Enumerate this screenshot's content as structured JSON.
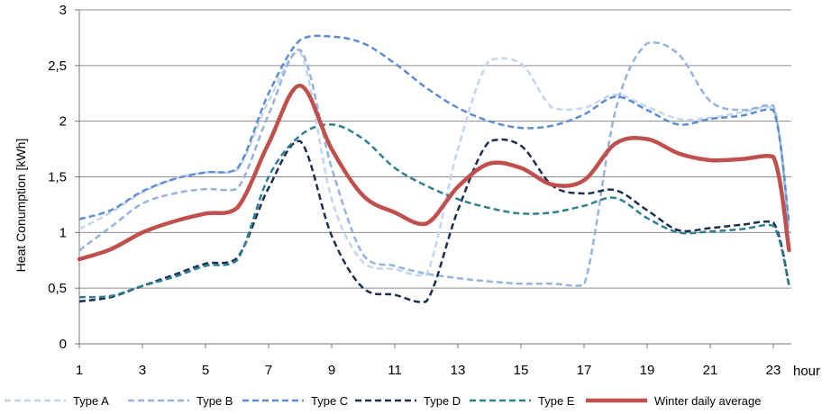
{
  "chart_data": {
    "type": "line",
    "xlabel": "hour",
    "ylabel": "Heat Conumption  [kWh]",
    "ylim": [
      0,
      3
    ],
    "xlim": [
      1,
      23.5
    ],
    "yticks": [
      0,
      0.5,
      1,
      1.5,
      2,
      2.5,
      3
    ],
    "ytick_labels": [
      "0",
      "0,5",
      "1",
      "1,5",
      "2",
      "2,5",
      "3"
    ],
    "xticks": [
      1,
      3,
      5,
      7,
      9,
      11,
      13,
      15,
      17,
      19,
      21,
      23
    ],
    "xtick_labels": [
      "1",
      "3",
      "5",
      "7",
      "9",
      "11",
      "13",
      "15",
      "17",
      "19",
      "21",
      "23"
    ],
    "grid": "horizontal",
    "legend_position": "bottom",
    "series": [
      {
        "name": "Type A",
        "color": "#c3d6ee",
        "dashed": true,
        "x": [
          1,
          2,
          3,
          4,
          5,
          6,
          7,
          8,
          9,
          10,
          11,
          12,
          13,
          14,
          15,
          16,
          17,
          18,
          19,
          20,
          21,
          22,
          23,
          23.5
        ],
        "y": [
          1.03,
          1.18,
          1.36,
          1.48,
          1.54,
          1.56,
          2.18,
          2.62,
          1.3,
          0.73,
          0.67,
          0.62,
          1.75,
          2.55,
          2.52,
          2.12,
          2.12,
          2.24,
          2.13,
          2.02,
          2.03,
          2.08,
          2.12,
          1.03
        ]
      },
      {
        "name": "Type B",
        "color": "#95b3dc",
        "dashed": true,
        "x": [
          1,
          2,
          3,
          4,
          5,
          6,
          7,
          8,
          9,
          10,
          11,
          12,
          13,
          14,
          15,
          16,
          17,
          18,
          19,
          20,
          21,
          22,
          23,
          23.5
        ],
        "y": [
          0.84,
          1.05,
          1.26,
          1.35,
          1.39,
          1.39,
          2.06,
          2.64,
          1.58,
          0.8,
          0.7,
          0.63,
          0.59,
          0.56,
          0.54,
          0.54,
          0.53,
          2.1,
          2.7,
          2.6,
          2.18,
          2.1,
          2.14,
          1.0
        ]
      },
      {
        "name": "Type C",
        "color": "#5b8ed0",
        "dashed": true,
        "x": [
          1,
          2,
          3,
          4,
          5,
          6,
          7,
          8,
          9,
          10,
          11,
          12,
          13,
          14,
          15,
          16,
          17,
          18,
          19,
          20,
          21,
          22,
          23,
          23.5
        ],
        "y": [
          1.12,
          1.2,
          1.37,
          1.48,
          1.54,
          1.57,
          2.25,
          2.73,
          2.76,
          2.7,
          2.52,
          2.3,
          2.12,
          2.0,
          1.94,
          1.96,
          2.06,
          2.22,
          2.1,
          1.97,
          2.02,
          2.05,
          2.1,
          1.08
        ]
      },
      {
        "name": "Type D",
        "color": "#1c2f52",
        "dashed": true,
        "x": [
          1,
          2,
          3,
          4,
          5,
          6,
          7,
          8,
          9,
          10,
          11,
          12,
          13,
          14,
          15,
          16,
          17,
          18,
          19,
          20,
          21,
          22,
          23,
          23.5
        ],
        "y": [
          0.38,
          0.42,
          0.52,
          0.62,
          0.72,
          0.77,
          1.4,
          1.82,
          0.97,
          0.5,
          0.44,
          0.38,
          1.2,
          1.82,
          1.78,
          1.42,
          1.35,
          1.38,
          1.2,
          1.02,
          1.04,
          1.07,
          1.09,
          0.53
        ]
      },
      {
        "name": "Type E",
        "color": "#2e8090",
        "dashed": true,
        "x": [
          1,
          2,
          3,
          4,
          5,
          6,
          7,
          8,
          9,
          10,
          11,
          12,
          13,
          14,
          15,
          16,
          17,
          18,
          19,
          20,
          21,
          22,
          23,
          23.5
        ],
        "y": [
          0.42,
          0.43,
          0.52,
          0.6,
          0.7,
          0.75,
          1.5,
          1.87,
          1.97,
          1.84,
          1.58,
          1.42,
          1.3,
          1.22,
          1.17,
          1.18,
          1.24,
          1.31,
          1.13,
          1.0,
          1.01,
          1.03,
          1.06,
          0.52
        ]
      },
      {
        "name": "Winter daily average",
        "color": "#c0504d",
        "dashed": false,
        "x": [
          1,
          2,
          3,
          4,
          5,
          6,
          7,
          8,
          9,
          10,
          11,
          12,
          13,
          14,
          15,
          16,
          17,
          18,
          19,
          20,
          21,
          22,
          23,
          23.5
        ],
        "y": [
          0.76,
          0.85,
          1.0,
          1.1,
          1.17,
          1.22,
          1.8,
          2.32,
          1.75,
          1.33,
          1.18,
          1.08,
          1.41,
          1.62,
          1.58,
          1.43,
          1.47,
          1.8,
          1.84,
          1.71,
          1.65,
          1.66,
          1.68,
          0.84
        ]
      }
    ]
  }
}
